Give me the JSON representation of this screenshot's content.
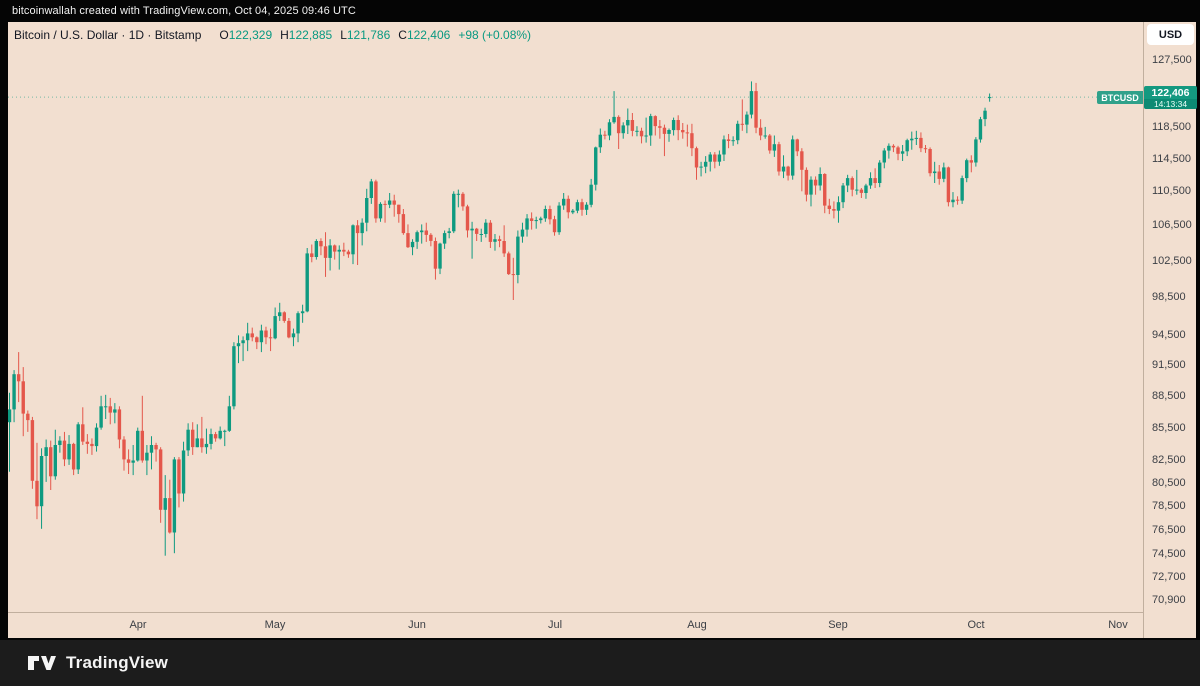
{
  "top_bar": {
    "attribution": "bitcoinwallah created with TradingView.com, Oct 04, 2025 09:46 UTC"
  },
  "header": {
    "symbol_title": "Bitcoin / U.S. Dollar · 1D · Bitstamp",
    "ohlc_items": [
      {
        "label": "O",
        "value": "122,329"
      },
      {
        "label": "H",
        "value": "122,885"
      },
      {
        "label": "L",
        "value": "121,786"
      },
      {
        "label": "C",
        "value": "122,406"
      }
    ],
    "change": "+98 (+0.08%)"
  },
  "price_axis": {
    "currency_button": "USD",
    "ticks": [
      127500,
      118500,
      114500,
      110500,
      106500,
      102500,
      98500,
      94500,
      91500,
      88500,
      85500,
      82500,
      80500,
      78500,
      76500,
      74500,
      72700,
      70900
    ],
    "last_price_label": {
      "symbol": "BTCUSD",
      "price": "122,406",
      "countdown": "14:13:34",
      "value": 122406
    }
  },
  "time_axis": {
    "months": [
      {
        "label": "Apr",
        "day_index": 28
      },
      {
        "label": "May",
        "day_index": 58
      },
      {
        "label": "Jun",
        "day_index": 89
      },
      {
        "label": "Jul",
        "day_index": 119
      },
      {
        "label": "Aug",
        "day_index": 150
      },
      {
        "label": "Sep",
        "day_index": 181
      },
      {
        "label": "Oct",
        "day_index": 211
      },
      {
        "label": "Nov",
        "day_index": 242
      }
    ]
  },
  "footer": {
    "brand": "TradingView"
  },
  "colors": {
    "up": "#0e9a80",
    "down": "#e4574b",
    "background": "#f2dfd0",
    "label_bg": "#149980",
    "countdown_bg": "#0c8a73",
    "ohlc_value": "#089981"
  },
  "chart_data": {
    "type": "candlestick",
    "title": "Bitcoin / U.S. Dollar",
    "symbol": "BTCUSD",
    "timeframe": "1D",
    "exchange": "Bitstamp",
    "scale": "logarithmic",
    "start_date": "2025-03-04",
    "end_date": "2025-10-04",
    "unit": "USD thousands",
    "visible_price_range": [
      69975,
      132800
    ],
    "last_price": 122406,
    "candles": [
      [
        86.0,
        88.8,
        81.5,
        87.2
      ],
      [
        87.2,
        91.0,
        86.0,
        90.6
      ],
      [
        90.6,
        92.8,
        87.9,
        89.9
      ],
      [
        89.9,
        91.3,
        84.7,
        86.8
      ],
      [
        86.8,
        87.1,
        85.1,
        86.2
      ],
      [
        86.2,
        86.5,
        80.0,
        80.7
      ],
      [
        80.7,
        84.1,
        77.4,
        78.5
      ],
      [
        78.5,
        83.6,
        76.6,
        82.9
      ],
      [
        82.9,
        84.4,
        80.6,
        83.7
      ],
      [
        83.7,
        84.3,
        79.9,
        81.1
      ],
      [
        81.1,
        85.3,
        80.8,
        83.9
      ],
      [
        83.9,
        84.7,
        83.2,
        84.3
      ],
      [
        84.3,
        85.1,
        82.0,
        82.6
      ],
      [
        82.6,
        84.8,
        82.1,
        84.0
      ],
      [
        84.0,
        84.1,
        81.2,
        81.7
      ],
      [
        81.7,
        86.0,
        81.3,
        85.8
      ],
      [
        85.8,
        87.4,
        83.9,
        84.2
      ],
      [
        84.2,
        84.9,
        83.1,
        84.0
      ],
      [
        84.0,
        84.5,
        83.0,
        83.8
      ],
      [
        83.8,
        85.9,
        83.3,
        85.5
      ],
      [
        85.5,
        88.5,
        85.3,
        87.5
      ],
      [
        87.5,
        88.6,
        86.3,
        87.5
      ],
      [
        87.5,
        88.3,
        85.8,
        86.9
      ],
      [
        86.9,
        87.8,
        85.9,
        87.2
      ],
      [
        87.2,
        87.5,
        83.6,
        84.4
      ],
      [
        84.4,
        84.7,
        81.6,
        82.6
      ],
      [
        82.6,
        83.5,
        81.3,
        82.3
      ],
      [
        82.3,
        83.9,
        81.2,
        82.5
      ],
      [
        82.5,
        85.5,
        82.4,
        85.2
      ],
      [
        85.2,
        88.5,
        82.3,
        82.5
      ],
      [
        82.5,
        83.9,
        81.2,
        83.2
      ],
      [
        83.2,
        84.7,
        81.7,
        83.9
      ],
      [
        83.9,
        84.1,
        82.4,
        83.5
      ],
      [
        83.5,
        83.7,
        77.1,
        78.2
      ],
      [
        78.2,
        81.2,
        74.4,
        79.2
      ],
      [
        79.2,
        80.8,
        76.2,
        76.3
      ],
      [
        76.3,
        82.8,
        74.6,
        82.6
      ],
      [
        82.6,
        82.8,
        78.4,
        79.6
      ],
      [
        79.6,
        84.2,
        78.9,
        83.4
      ],
      [
        83.4,
        85.9,
        82.9,
        85.3
      ],
      [
        85.3,
        86.0,
        83.0,
        83.7
      ],
      [
        83.7,
        85.8,
        83.7,
        84.5
      ],
      [
        84.5,
        86.5,
        83.2,
        83.7
      ],
      [
        83.7,
        85.4,
        83.1,
        84.0
      ],
      [
        84.0,
        85.4,
        83.5,
        84.9
      ],
      [
        84.9,
        85.1,
        84.2,
        84.5
      ],
      [
        84.5,
        85.6,
        84.4,
        85.2
      ],
      [
        85.2,
        85.3,
        83.8,
        85.2
      ],
      [
        85.2,
        88.5,
        85.1,
        87.5
      ],
      [
        87.5,
        93.8,
        87.2,
        93.4
      ],
      [
        93.4,
        94.5,
        91.7,
        93.7
      ],
      [
        93.7,
        94.4,
        91.9,
        94.0
      ],
      [
        94.0,
        95.8,
        92.9,
        94.7
      ],
      [
        94.7,
        95.3,
        93.9,
        94.3
      ],
      [
        94.3,
        94.4,
        93.1,
        93.8
      ],
      [
        93.8,
        95.6,
        92.8,
        95.0
      ],
      [
        95.0,
        95.4,
        93.6,
        94.3
      ],
      [
        94.3,
        95.2,
        92.9,
        94.2
      ],
      [
        94.2,
        97.4,
        94.1,
        96.5
      ],
      [
        96.5,
        97.9,
        96.0,
        96.9
      ],
      [
        96.9,
        97.0,
        95.8,
        96.0
      ],
      [
        96.0,
        96.3,
        94.2,
        94.3
      ],
      [
        94.3,
        95.2,
        93.4,
        94.7
      ],
      [
        94.7,
        97.0,
        93.8,
        96.8
      ],
      [
        96.8,
        97.7,
        95.8,
        97.0
      ],
      [
        97.0,
        103.9,
        96.9,
        103.3
      ],
      [
        103.3,
        104.3,
        102.3,
        102.9
      ],
      [
        102.9,
        104.9,
        102.6,
        104.7
      ],
      [
        104.7,
        105.0,
        103.1,
        104.1
      ],
      [
        104.1,
        105.7,
        100.7,
        102.8
      ],
      [
        102.8,
        104.9,
        101.4,
        104.2
      ],
      [
        104.2,
        104.3,
        102.6,
        103.5
      ],
      [
        103.5,
        104.2,
        101.5,
        103.7
      ],
      [
        103.7,
        104.5,
        103.0,
        103.5
      ],
      [
        103.5,
        103.7,
        102.8,
        103.2
      ],
      [
        103.2,
        106.6,
        102.1,
        106.5
      ],
      [
        106.5,
        107.1,
        102.0,
        105.6
      ],
      [
        105.6,
        107.3,
        104.2,
        106.8
      ],
      [
        106.8,
        110.8,
        105.8,
        109.7
      ],
      [
        109.7,
        112.0,
        109.0,
        111.7
      ],
      [
        111.7,
        111.9,
        106.8,
        107.3
      ],
      [
        107.3,
        109.2,
        106.9,
        109.0
      ],
      [
        109.0,
        109.4,
        106.8,
        108.9
      ],
      [
        108.9,
        110.3,
        108.5,
        109.4
      ],
      [
        109.4,
        110.1,
        107.5,
        108.9
      ],
      [
        108.9,
        108.9,
        106.8,
        107.8
      ],
      [
        107.8,
        108.4,
        105.4,
        105.6
      ],
      [
        105.6,
        106.6,
        103.9,
        104.0
      ],
      [
        104.0,
        104.9,
        103.1,
        104.6
      ],
      [
        104.6,
        105.9,
        103.8,
        105.7
      ],
      [
        105.7,
        106.6,
        104.4,
        105.9
      ],
      [
        105.9,
        106.8,
        104.6,
        105.4
      ],
      [
        105.4,
        105.6,
        104.1,
        104.7
      ],
      [
        104.7,
        105.1,
        100.4,
        101.6
      ],
      [
        101.6,
        104.5,
        101.0,
        104.4
      ],
      [
        104.4,
        105.9,
        103.8,
        105.6
      ],
      [
        105.6,
        106.2,
        105.0,
        105.8
      ],
      [
        105.8,
        110.5,
        105.6,
        110.2
      ],
      [
        110.2,
        110.7,
        108.6,
        110.2
      ],
      [
        110.2,
        110.4,
        108.2,
        108.7
      ],
      [
        108.7,
        108.9,
        105.1,
        105.9
      ],
      [
        105.9,
        106.9,
        102.7,
        106.1
      ],
      [
        106.1,
        106.2,
        104.7,
        105.5
      ],
      [
        105.5,
        106.1,
        104.6,
        105.5
      ],
      [
        105.5,
        107.2,
        105.1,
        106.8
      ],
      [
        106.8,
        107.1,
        103.9,
        104.6
      ],
      [
        104.6,
        105.5,
        103.6,
        104.9
      ],
      [
        104.9,
        105.3,
        104.0,
        104.7
      ],
      [
        104.7,
        106.5,
        102.9,
        103.3
      ],
      [
        103.3,
        103.5,
        100.9,
        101.0
      ],
      [
        101.0,
        102.8,
        98.2,
        100.9
      ],
      [
        100.9,
        105.9,
        100.0,
        105.2
      ],
      [
        105.2,
        106.8,
        104.5,
        106.0
      ],
      [
        106.0,
        107.8,
        105.2,
        107.3
      ],
      [
        107.3,
        108.0,
        106.0,
        107.0
      ],
      [
        107.0,
        107.5,
        106.1,
        107.1
      ],
      [
        107.1,
        107.5,
        106.7,
        107.3
      ],
      [
        107.3,
        108.8,
        106.9,
        108.4
      ],
      [
        108.4,
        108.8,
        106.6,
        107.2
      ],
      [
        107.2,
        107.6,
        105.3,
        105.7
      ],
      [
        105.7,
        109.2,
        105.4,
        108.8
      ],
      [
        108.8,
        110.3,
        108.3,
        109.6
      ],
      [
        109.6,
        110.0,
        107.3,
        108.0
      ],
      [
        108.0,
        108.4,
        107.8,
        108.2
      ],
      [
        108.2,
        109.5,
        107.9,
        109.2
      ],
      [
        109.2,
        109.6,
        107.6,
        108.3
      ],
      [
        108.3,
        109.2,
        107.7,
        108.9
      ],
      [
        108.9,
        112.0,
        108.6,
        111.3
      ],
      [
        111.3,
        116.0,
        110.6,
        115.9
      ],
      [
        115.9,
        118.3,
        115.2,
        117.5
      ],
      [
        117.5,
        118.0,
        116.9,
        117.4
      ],
      [
        117.4,
        119.5,
        116.8,
        119.1
      ],
      [
        119.1,
        123.2,
        118.9,
        119.8
      ],
      [
        119.8,
        120.0,
        115.7,
        117.7
      ],
      [
        117.7,
        119.1,
        117.0,
        118.7
      ],
      [
        118.7,
        120.9,
        117.6,
        119.4
      ],
      [
        119.4,
        120.3,
        117.3,
        118.0
      ],
      [
        118.0,
        118.6,
        117.3,
        118.0
      ],
      [
        118.0,
        118.4,
        116.4,
        117.3
      ],
      [
        117.3,
        119.7,
        116.5,
        117.4
      ],
      [
        117.4,
        120.2,
        116.1,
        119.9
      ],
      [
        119.9,
        120.0,
        117.4,
        118.6
      ],
      [
        118.6,
        119.4,
        117.0,
        118.4
      ],
      [
        118.4,
        118.8,
        114.8,
        117.6
      ],
      [
        117.6,
        118.3,
        116.6,
        118.1
      ],
      [
        118.1,
        119.7,
        117.4,
        119.4
      ],
      [
        119.4,
        120.0,
        116.8,
        118.1
      ],
      [
        118.1,
        119.0,
        117.0,
        117.8
      ],
      [
        117.8,
        118.8,
        116.0,
        117.7
      ],
      [
        117.7,
        118.9,
        114.8,
        115.8
      ],
      [
        115.8,
        116.0,
        111.9,
        113.4
      ],
      [
        113.4,
        114.1,
        112.3,
        113.5
      ],
      [
        113.5,
        114.8,
        112.7,
        114.1
      ],
      [
        114.1,
        115.3,
        112.9,
        115.0
      ],
      [
        115.0,
        115.3,
        113.3,
        114.1
      ],
      [
        114.1,
        115.5,
        113.6,
        115.0
      ],
      [
        115.0,
        117.4,
        114.2,
        116.9
      ],
      [
        116.9,
        117.6,
        115.8,
        116.7
      ],
      [
        116.7,
        117.3,
        116.1,
        116.8
      ],
      [
        116.8,
        119.3,
        116.3,
        118.9
      ],
      [
        118.9,
        122.1,
        118.0,
        118.8
      ],
      [
        118.8,
        120.5,
        117.7,
        120.1
      ],
      [
        120.1,
        124.5,
        119.6,
        123.2
      ],
      [
        123.2,
        124.3,
        117.7,
        118.4
      ],
      [
        118.4,
        119.5,
        116.8,
        117.4
      ],
      [
        117.4,
        118.5,
        117.0,
        117.4
      ],
      [
        117.4,
        117.6,
        115.1,
        115.5
      ],
      [
        115.5,
        117.4,
        114.7,
        116.3
      ],
      [
        116.3,
        116.6,
        112.4,
        112.9
      ],
      [
        112.9,
        114.9,
        112.1,
        113.5
      ],
      [
        113.5,
        113.6,
        111.8,
        112.4
      ],
      [
        112.4,
        117.4,
        111.9,
        116.9
      ],
      [
        116.9,
        117.0,
        114.8,
        115.4
      ],
      [
        115.4,
        115.8,
        110.5,
        113.1
      ],
      [
        113.1,
        113.4,
        109.3,
        110.1
      ],
      [
        110.1,
        112.3,
        108.7,
        111.9
      ],
      [
        111.9,
        112.3,
        110.1,
        111.2
      ],
      [
        111.2,
        113.4,
        110.6,
        112.6
      ],
      [
        112.6,
        112.7,
        107.9,
        108.8
      ],
      [
        108.8,
        109.6,
        107.8,
        108.4
      ],
      [
        108.4,
        109.3,
        107.3,
        108.2
      ],
      [
        108.2,
        109.9,
        106.8,
        109.2
      ],
      [
        109.2,
        111.5,
        108.5,
        111.2
      ],
      [
        111.2,
        112.5,
        110.4,
        112.1
      ],
      [
        112.1,
        112.3,
        109.9,
        110.7
      ],
      [
        110.7,
        113.1,
        110.1,
        110.7
      ],
      [
        110.7,
        110.9,
        109.7,
        110.3
      ],
      [
        110.3,
        111.4,
        109.6,
        111.2
      ],
      [
        111.2,
        112.8,
        110.8,
        112.1
      ],
      [
        112.1,
        113.3,
        110.9,
        111.5
      ],
      [
        111.5,
        114.3,
        111.0,
        114.0
      ],
      [
        114.0,
        115.8,
        113.3,
        115.5
      ],
      [
        115.5,
        116.4,
        114.5,
        116.1
      ],
      [
        116.1,
        116.3,
        115.3,
        115.9
      ],
      [
        115.9,
        116.1,
        114.3,
        115.1
      ],
      [
        115.1,
        116.2,
        114.2,
        115.4
      ],
      [
        115.4,
        117.0,
        114.8,
        116.8
      ],
      [
        116.8,
        117.9,
        115.6,
        117.0
      ],
      [
        117.0,
        118.0,
        116.2,
        117.1
      ],
      [
        117.1,
        117.8,
        115.3,
        115.8
      ],
      [
        115.8,
        116.2,
        115.2,
        115.7
      ],
      [
        115.7,
        115.9,
        112.3,
        112.7
      ],
      [
        112.7,
        114.1,
        111.5,
        112.9
      ],
      [
        112.9,
        113.7,
        111.3,
        112.0
      ],
      [
        112.0,
        114.0,
        111.6,
        113.4
      ],
      [
        113.4,
        113.5,
        108.7,
        109.2
      ],
      [
        109.2,
        110.4,
        108.6,
        109.5
      ],
      [
        109.5,
        109.9,
        108.9,
        109.4
      ],
      [
        109.4,
        112.4,
        109.0,
        112.1
      ],
      [
        112.1,
        114.5,
        111.6,
        114.3
      ],
      [
        114.3,
        114.9,
        112.8,
        114.0
      ],
      [
        114.0,
        117.2,
        113.5,
        116.9
      ],
      [
        116.9,
        119.8,
        116.5,
        119.5
      ],
      [
        119.5,
        121.0,
        118.6,
        120.6
      ],
      [
        122.329,
        122.885,
        121.786,
        122.406
      ]
    ]
  }
}
